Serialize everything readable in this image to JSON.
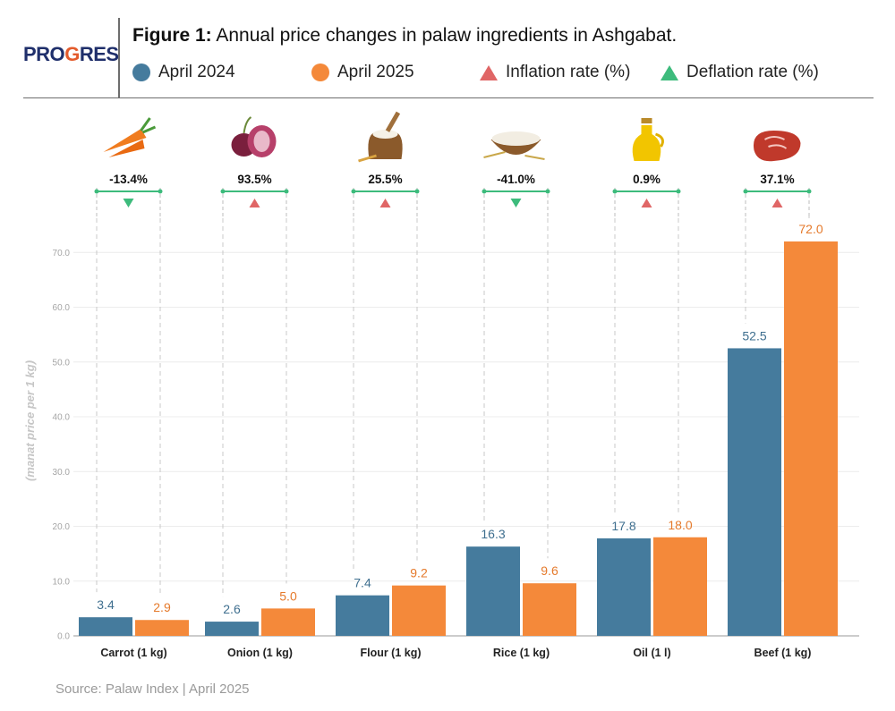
{
  "header": {
    "logo_text_a": "PRO",
    "logo_text_b": "G",
    "logo_text_c": "RES",
    "title_bold": "Figure 1:",
    "title_rest": " Annual price changes in palaw ingredients in Ashgabat."
  },
  "legend": {
    "items": [
      {
        "label": "April 2024",
        "shape": "circle",
        "color": "#457b9d"
      },
      {
        "label": "April 2025",
        "shape": "circle",
        "color": "#f4893a"
      },
      {
        "label": "Inflation rate (%)",
        "shape": "triangle",
        "color": "#e06666"
      },
      {
        "label": "Deflation rate (%)",
        "shape": "triangle",
        "color": "#3dbb7c"
      }
    ]
  },
  "chart_data": {
    "type": "bar",
    "ylabel": "(manat price per 1 kg)",
    "ylim": [
      0,
      72
    ],
    "yticks": [
      "0.0",
      "10.0",
      "20.0",
      "30.0",
      "40.0",
      "50.0",
      "60.0",
      "70.0"
    ],
    "ytick_values": [
      0,
      10,
      20,
      30,
      40,
      50,
      60,
      70
    ],
    "grid": true,
    "categories": [
      "Carrot (1 kg)",
      "Onion (1 kg)",
      "Flour (1 kg)",
      "Rice (1 kg)",
      "Oil (1 l)",
      "Beef (1 kg)"
    ],
    "series": [
      {
        "name": "April 2024",
        "color": "#457b9d",
        "values": [
          3.4,
          2.6,
          7.4,
          16.3,
          17.8,
          52.5
        ],
        "labels": [
          "3.4",
          "2.6",
          "7.4",
          "16.3",
          "17.8",
          "52.5"
        ]
      },
      {
        "name": "April 2025",
        "color": "#f4893a",
        "values": [
          2.9,
          5.0,
          9.2,
          9.6,
          18.0,
          72.0
        ],
        "labels": [
          "2.9",
          "5.0",
          "9.2",
          "9.6",
          "18.0",
          "72.0"
        ]
      }
    ],
    "change_rates": [
      "-13.4%",
      "93.5%",
      "25.5%",
      "-41.0%",
      "0.9%",
      "37.1%"
    ],
    "change_direction": [
      "deflation",
      "inflation",
      "inflation",
      "deflation",
      "inflation",
      "inflation"
    ],
    "icons": [
      "carrot-icon",
      "onion-icon",
      "flour-sack-icon",
      "rice-bowl-icon",
      "oil-bottle-icon",
      "beef-steak-icon"
    ]
  },
  "footer": {
    "source": "Source: Palaw Index | April 2025"
  }
}
